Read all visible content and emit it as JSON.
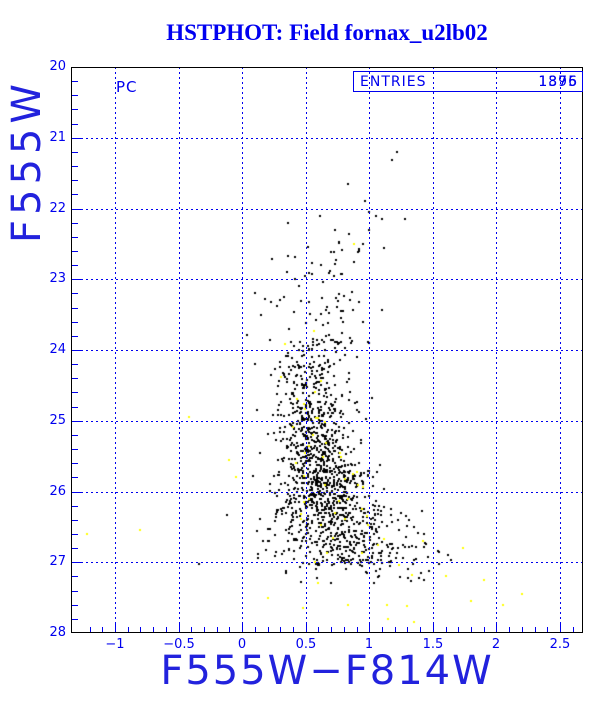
{
  "header": {
    "title": "HSTPHOT: Field fornax_u2lb02"
  },
  "plot": {
    "chip_label": "PC",
    "entries_label": "ENTRIES",
    "entries_values": [
      "1895",
      "1376"
    ],
    "xlabel": "F555W−F814W",
    "ylabel": "F555W"
  },
  "chart_data": {
    "type": "scatter",
    "title": "HSTPHOT: Field fornax_u2lb02",
    "xlabel": "F555W−F814W",
    "ylabel": "F555W",
    "xlim": [
      -1.346,
      2.681
    ],
    "ylim": [
      20,
      28
    ],
    "y_axis_inverted": true,
    "x_tick_values": [
      -1,
      -0.5,
      0,
      0.5,
      1,
      1.5,
      2,
      2.5
    ],
    "x_tick_labels": [
      "−1",
      "−0.5",
      "0",
      "0.5",
      "1",
      "1.5",
      "2",
      "2.5"
    ],
    "y_tick_values": [
      20,
      21,
      22,
      23,
      24,
      25,
      26,
      27,
      28
    ],
    "y_tick_labels": [
      "20",
      "21",
      "22",
      "23",
      "24",
      "25",
      "26",
      "27",
      "28"
    ],
    "x_minor_step": 0.1,
    "y_minor_step": 0.2,
    "grid": {
      "style": "dotted",
      "at_x": [
        -1,
        -0.5,
        0,
        0.5,
        1,
        1.5,
        2,
        2.5
      ],
      "at_y": [
        21,
        22,
        23,
        24,
        25,
        26,
        27
      ]
    },
    "annotations": {
      "chip": "PC",
      "entries_label": "ENTRIES",
      "entries_values": [
        "1895",
        "1376"
      ]
    },
    "colors": {
      "frame": "#000000",
      "axis": "#0000ee",
      "stars": "#000000",
      "flagged": "#ffff00",
      "title": "#0000f0"
    },
    "marker": "square",
    "marker_px": 2,
    "seed": 77,
    "series": [
      {
        "name": "stars",
        "color_key": "stars",
        "ridge_bins": [
          {
            "y0": 22.0,
            "y1": 22.6,
            "x_mean": 0.85,
            "x_sigma": 0.2,
            "n": 10
          },
          {
            "y0": 22.6,
            "y1": 23.2,
            "x_mean": 0.72,
            "x_sigma": 0.2,
            "n": 18
          },
          {
            "y0": 23.2,
            "y1": 23.7,
            "x_mean": 0.66,
            "x_sigma": 0.22,
            "n": 30
          },
          {
            "y0": 23.7,
            "y1": 24.2,
            "x_mean": 0.58,
            "x_sigma": 0.2,
            "n": 60
          },
          {
            "y0": 24.2,
            "y1": 24.7,
            "x_mean": 0.55,
            "x_sigma": 0.17,
            "n": 100
          },
          {
            "y0": 24.7,
            "y1": 25.2,
            "x_mean": 0.56,
            "x_sigma": 0.145,
            "n": 170
          },
          {
            "y0": 25.2,
            "y1": 25.7,
            "x_mean": 0.6,
            "x_sigma": 0.15,
            "n": 230
          },
          {
            "y0": 25.7,
            "y1": 26.2,
            "x_mean": 0.66,
            "x_sigma": 0.18,
            "n": 300
          },
          {
            "y0": 26.2,
            "y1": 26.7,
            "x_mean": 0.72,
            "x_sigma": 0.24,
            "n": 280
          },
          {
            "y0": 26.7,
            "y1": 27.05,
            "x_mean": 0.85,
            "x_sigma": 0.3,
            "n": 160
          },
          {
            "y0": 27.05,
            "y1": 27.3,
            "x_mean": 0.95,
            "x_sigma": 0.35,
            "n": 25
          }
        ],
        "points": [
          [
            1.22,
            21.2
          ],
          [
            1.18,
            21.31
          ],
          [
            0.83,
            21.65
          ],
          [
            0.97,
            21.9
          ],
          [
            1.0,
            22.05
          ],
          [
            1.05,
            22.1
          ],
          [
            1.1,
            22.15
          ],
          [
            1.0,
            22.3
          ],
          [
            0.73,
            22.3
          ],
          [
            0.52,
            22.55
          ],
          [
            0.62,
            22.8
          ],
          [
            0.35,
            22.9
          ],
          [
            0.55,
            22.92
          ],
          [
            0.72,
            22.95
          ],
          [
            0.88,
            22.75
          ],
          [
            0.92,
            22.6
          ],
          [
            0.1,
            23.2
          ],
          [
            0.3,
            23.3
          ],
          [
            0.45,
            23.1
          ],
          [
            0.85,
            23.3
          ],
          [
            0.95,
            23.6
          ],
          [
            0.15,
            23.5
          ],
          [
            1.0,
            23.9
          ],
          [
            0.9,
            24.1
          ],
          [
            0.1,
            24.2
          ],
          [
            0.12,
            24.85
          ],
          [
            0.14,
            25.45
          ],
          [
            1.35,
            26.5
          ],
          [
            1.43,
            26.6
          ],
          [
            1.55,
            26.85
          ],
          [
            1.62,
            26.9
          ]
        ]
      },
      {
        "name": "flagged",
        "color_key": "flagged",
        "bin_fraction": 0.035,
        "min_bin_y": 23.7,
        "points": [
          [
            -1.22,
            26.6
          ],
          [
            -0.8,
            26.55
          ],
          [
            -0.42,
            24.95
          ],
          [
            -0.1,
            25.55
          ],
          [
            -0.05,
            25.8
          ],
          [
            0.88,
            22.5
          ],
          [
            0.2,
            27.5
          ],
          [
            0.48,
            27.65
          ],
          [
            0.6,
            27.3
          ],
          [
            0.83,
            27.6
          ],
          [
            1.14,
            27.6
          ],
          [
            1.3,
            27.62
          ],
          [
            1.15,
            27.8
          ],
          [
            1.35,
            27.85
          ],
          [
            1.6,
            27.2
          ],
          [
            1.74,
            26.8
          ],
          [
            1.8,
            27.55
          ],
          [
            1.9,
            27.25
          ],
          [
            2.05,
            27.6
          ],
          [
            2.2,
            27.45
          ]
        ]
      }
    ]
  }
}
